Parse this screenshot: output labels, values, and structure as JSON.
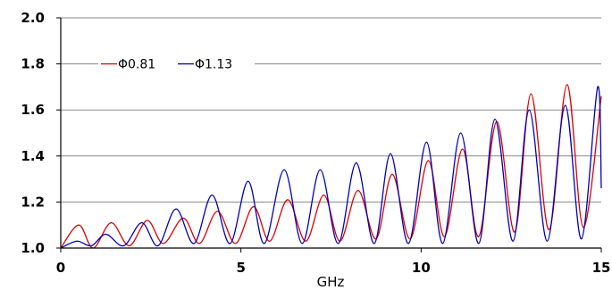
{
  "chart_data": {
    "type": "line",
    "xlabel": "GHz",
    "ylabel": "",
    "xlim": [
      0,
      15
    ],
    "ylim": [
      1.0,
      2.0
    ],
    "x_ticks": [
      "0",
      "5",
      "10",
      "15"
    ],
    "y_ticks": [
      "1.0",
      "1.2",
      "1.4",
      "1.6",
      "1.8",
      "2.0"
    ],
    "grid": "horizontal",
    "legend_position": "top-left",
    "series": [
      {
        "name": "Φ0.81",
        "color": "#e00000",
        "x": [
          0.0,
          0.5,
          0.9,
          1.4,
          1.9,
          2.4,
          2.85,
          3.4,
          3.85,
          4.35,
          4.85,
          5.35,
          5.8,
          6.3,
          6.8,
          7.3,
          7.75,
          8.25,
          8.75,
          9.2,
          9.7,
          10.2,
          10.65,
          11.15,
          11.6,
          12.1,
          12.6,
          13.05,
          13.55,
          14.05,
          14.5,
          15.0
        ],
        "y": [
          1.0,
          1.1,
          1.0,
          1.11,
          1.01,
          1.12,
          1.02,
          1.13,
          1.02,
          1.16,
          1.02,
          1.18,
          1.03,
          1.21,
          1.03,
          1.23,
          1.03,
          1.25,
          1.04,
          1.32,
          1.04,
          1.38,
          1.05,
          1.43,
          1.05,
          1.55,
          1.07,
          1.67,
          1.08,
          1.71,
          1.09,
          1.66
        ]
      },
      {
        "name": "Φ1.13",
        "color": "#0000bb",
        "x": [
          0.0,
          0.45,
          0.85,
          1.25,
          1.75,
          2.25,
          2.7,
          3.2,
          3.7,
          4.2,
          4.7,
          5.2,
          5.65,
          6.2,
          6.7,
          7.2,
          7.7,
          8.2,
          8.7,
          9.15,
          9.65,
          10.15,
          10.6,
          11.1,
          11.6,
          12.05,
          12.55,
          13.0,
          13.5,
          14.0,
          14.45,
          14.9,
          15.0
        ],
        "y": [
          1.0,
          1.03,
          1.01,
          1.06,
          1.01,
          1.11,
          1.01,
          1.17,
          1.02,
          1.23,
          1.02,
          1.29,
          1.02,
          1.34,
          1.02,
          1.34,
          1.02,
          1.37,
          1.02,
          1.41,
          1.02,
          1.46,
          1.02,
          1.5,
          1.02,
          1.56,
          1.03,
          1.6,
          1.03,
          1.62,
          1.04,
          1.7,
          1.26
        ]
      }
    ]
  }
}
